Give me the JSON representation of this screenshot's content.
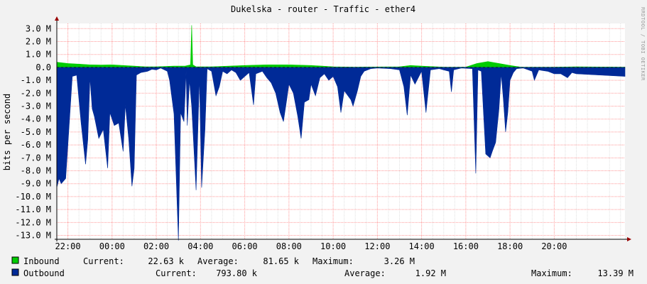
{
  "chart_data": {
    "type": "area",
    "title": "Dukelska - router - Traffic - ether4",
    "ylabel": "bits per second",
    "watermark": "RRDTOOL / TOBI OETIKER",
    "ylim": [
      -13.3,
      3.4
    ],
    "yticks": [
      "3.0 M",
      "2.0 M",
      "1.0 M",
      "0.0",
      "-1.0 M",
      "-2.0 M",
      "-3.0 M",
      "-4.0 M",
      "-5.0 M",
      "-6.0 M",
      "-7.0 M",
      "-8.0 M",
      "-9.0 M",
      "-10.0 M",
      "-11.0 M",
      "-12.0 M",
      "-13.0 M"
    ],
    "xticks": [
      "22:00",
      "00:00",
      "02:00",
      "04:00",
      "06:00",
      "08:00",
      "10:00",
      "12:00",
      "14:00",
      "16:00",
      "18:00",
      "20:00"
    ],
    "x_hours": [
      -2.5,
      23.2
    ],
    "grid": true,
    "colors": {
      "inbound": "#00cc00",
      "outbound": "#002a97",
      "grid": "#ff9999",
      "axis": "#000000",
      "arrow": "#990000",
      "background": "#ffffff",
      "canvas": "#f2f2f2"
    },
    "series": [
      {
        "name": "Inbound",
        "unit": "bits per second",
        "points": [
          [
            -2.5,
            0.4
          ],
          [
            -2.0,
            0.3
          ],
          [
            -1.5,
            0.25
          ],
          [
            -1.0,
            0.2
          ],
          [
            -0.5,
            0.18
          ],
          [
            0.0,
            0.2
          ],
          [
            0.5,
            0.15
          ],
          [
            1.0,
            0.1
          ],
          [
            1.5,
            0.05
          ],
          [
            2.0,
            0.05
          ],
          [
            2.8,
            0.1
          ],
          [
            3.3,
            0.1
          ],
          [
            3.55,
            0.2
          ],
          [
            3.6,
            3.26
          ],
          [
            3.65,
            0.2
          ],
          [
            3.8,
            0.05
          ],
          [
            4.5,
            0.05
          ],
          [
            6.0,
            0.15
          ],
          [
            7.0,
            0.2
          ],
          [
            8.0,
            0.2
          ],
          [
            9.0,
            0.15
          ],
          [
            9.5,
            0.1
          ],
          [
            10.0,
            0.05
          ],
          [
            11.0,
            0.02
          ],
          [
            13.0,
            0.05
          ],
          [
            13.5,
            0.15
          ],
          [
            14.0,
            0.1
          ],
          [
            15.0,
            0.02
          ],
          [
            16.0,
            0.02
          ],
          [
            16.5,
            0.3
          ],
          [
            17.0,
            0.45
          ],
          [
            17.5,
            0.3
          ],
          [
            18.0,
            0.15
          ],
          [
            18.5,
            0.02
          ],
          [
            20.0,
            0.02
          ],
          [
            21.0,
            0.05
          ],
          [
            23.2,
            0.02
          ]
        ]
      },
      {
        "name": "Outbound",
        "unit": "bits per second",
        "points": [
          [
            -2.5,
            -9.3
          ],
          [
            -2.4,
            -8.6
          ],
          [
            -2.3,
            -9.0
          ],
          [
            -2.1,
            -8.6
          ],
          [
            -2.0,
            -6.0
          ],
          [
            -1.8,
            -0.7
          ],
          [
            -1.6,
            -0.6
          ],
          [
            -1.4,
            -4.3
          ],
          [
            -1.2,
            -7.5
          ],
          [
            -1.1,
            -5.6
          ],
          [
            -1.0,
            -0.8
          ],
          [
            -0.9,
            -3.2
          ],
          [
            -0.8,
            -3.8
          ],
          [
            -0.6,
            -5.5
          ],
          [
            -0.4,
            -4.8
          ],
          [
            -0.2,
            -7.8
          ],
          [
            -0.1,
            -3.5
          ],
          [
            0.1,
            -4.5
          ],
          [
            0.3,
            -4.3
          ],
          [
            0.5,
            -6.5
          ],
          [
            0.6,
            -2.9
          ],
          [
            0.75,
            -5.5
          ],
          [
            0.9,
            -9.2
          ],
          [
            1.0,
            -7.8
          ],
          [
            1.1,
            -0.6
          ],
          [
            1.3,
            -0.4
          ],
          [
            1.6,
            -0.3
          ],
          [
            1.8,
            -0.15
          ],
          [
            2.0,
            -0.2
          ],
          [
            2.2,
            -0.05
          ],
          [
            2.5,
            -0.3
          ],
          [
            2.6,
            -1.0
          ],
          [
            2.8,
            -3.6
          ],
          [
            3.0,
            -13.4
          ],
          [
            3.1,
            -3.5
          ],
          [
            3.25,
            -4.2
          ],
          [
            3.35,
            -0.3
          ],
          [
            3.4,
            -4.5
          ],
          [
            3.5,
            -1.0
          ],
          [
            3.6,
            -3.0
          ],
          [
            3.8,
            -9.5
          ],
          [
            3.95,
            -0.8
          ],
          [
            4.05,
            -9.3
          ],
          [
            4.2,
            -4.8
          ],
          [
            4.3,
            -0.1
          ],
          [
            4.5,
            -0.3
          ],
          [
            4.7,
            -2.2
          ],
          [
            4.85,
            -1.5
          ],
          [
            5.0,
            -0.3
          ],
          [
            5.2,
            -0.5
          ],
          [
            5.4,
            -0.2
          ],
          [
            5.6,
            -0.4
          ],
          [
            5.8,
            -1.0
          ],
          [
            6.0,
            -0.7
          ],
          [
            6.2,
            -0.4
          ],
          [
            6.4,
            -2.9
          ],
          [
            6.5,
            -0.5
          ],
          [
            6.8,
            -0.3
          ],
          [
            7.0,
            -0.8
          ],
          [
            7.2,
            -1.2
          ],
          [
            7.4,
            -2.0
          ],
          [
            7.6,
            -3.5
          ],
          [
            7.75,
            -4.2
          ],
          [
            7.9,
            -2.5
          ],
          [
            8.0,
            -1.3
          ],
          [
            8.2,
            -2.0
          ],
          [
            8.4,
            -3.8
          ],
          [
            8.55,
            -5.5
          ],
          [
            8.7,
            -2.7
          ],
          [
            8.9,
            -2.5
          ],
          [
            9.0,
            -1.3
          ],
          [
            9.2,
            -2.2
          ],
          [
            9.4,
            -0.8
          ],
          [
            9.6,
            -0.5
          ],
          [
            9.8,
            -1.0
          ],
          [
            10.0,
            -0.7
          ],
          [
            10.2,
            -1.5
          ],
          [
            10.35,
            -3.5
          ],
          [
            10.5,
            -1.8
          ],
          [
            10.8,
            -2.5
          ],
          [
            10.9,
            -3.0
          ],
          [
            11.1,
            -1.8
          ],
          [
            11.25,
            -0.7
          ],
          [
            11.4,
            -0.3
          ],
          [
            11.7,
            -0.1
          ],
          [
            12.0,
            -0.05
          ],
          [
            12.6,
            -0.1
          ],
          [
            13.0,
            -0.2
          ],
          [
            13.2,
            -1.5
          ],
          [
            13.35,
            -3.7
          ],
          [
            13.5,
            -0.6
          ],
          [
            13.7,
            -1.3
          ],
          [
            14.0,
            -0.3
          ],
          [
            14.2,
            -3.5
          ],
          [
            14.4,
            -0.2
          ],
          [
            14.8,
            -0.1
          ],
          [
            15.0,
            -0.2
          ],
          [
            15.25,
            -0.3
          ],
          [
            15.35,
            -1.9
          ],
          [
            15.45,
            -0.2
          ],
          [
            15.8,
            -0.05
          ],
          [
            16.3,
            -0.1
          ],
          [
            16.45,
            -8.2
          ],
          [
            16.55,
            -0.2
          ],
          [
            16.7,
            -0.3
          ],
          [
            16.9,
            -6.7
          ],
          [
            17.1,
            -7.0
          ],
          [
            17.2,
            -6.5
          ],
          [
            17.35,
            -5.8
          ],
          [
            17.5,
            -3.2
          ],
          [
            17.6,
            -0.5
          ],
          [
            17.7,
            -2.5
          ],
          [
            17.8,
            -5.0
          ],
          [
            17.9,
            -3.5
          ],
          [
            18.0,
            -1.0
          ],
          [
            18.15,
            -0.4
          ],
          [
            18.3,
            -0.1
          ],
          [
            18.6,
            -0.05
          ],
          [
            19.0,
            -0.3
          ],
          [
            19.1,
            -1.0
          ],
          [
            19.3,
            -0.2
          ],
          [
            19.7,
            -0.3
          ],
          [
            20.0,
            -0.5
          ],
          [
            20.3,
            -0.5
          ],
          [
            20.6,
            -0.8
          ],
          [
            20.8,
            -0.4
          ],
          [
            21.0,
            -0.5
          ],
          [
            23.2,
            -0.7
          ]
        ]
      }
    ]
  },
  "legend": {
    "inbound": {
      "label": "Inbound",
      "current_label": "Current:",
      "current_value": "22.63 k",
      "average_label": "Average:",
      "average_value": "81.65 k",
      "maximum_label": "Maximum:",
      "maximum_value": "3.26 M"
    },
    "outbound": {
      "label": "Outbound",
      "current_label": "Current:",
      "current_value": "793.80 k",
      "average_label": "Average:",
      "average_value": "1.92 M",
      "maximum_label": "Maximum:",
      "maximum_value": "13.39 M"
    }
  }
}
